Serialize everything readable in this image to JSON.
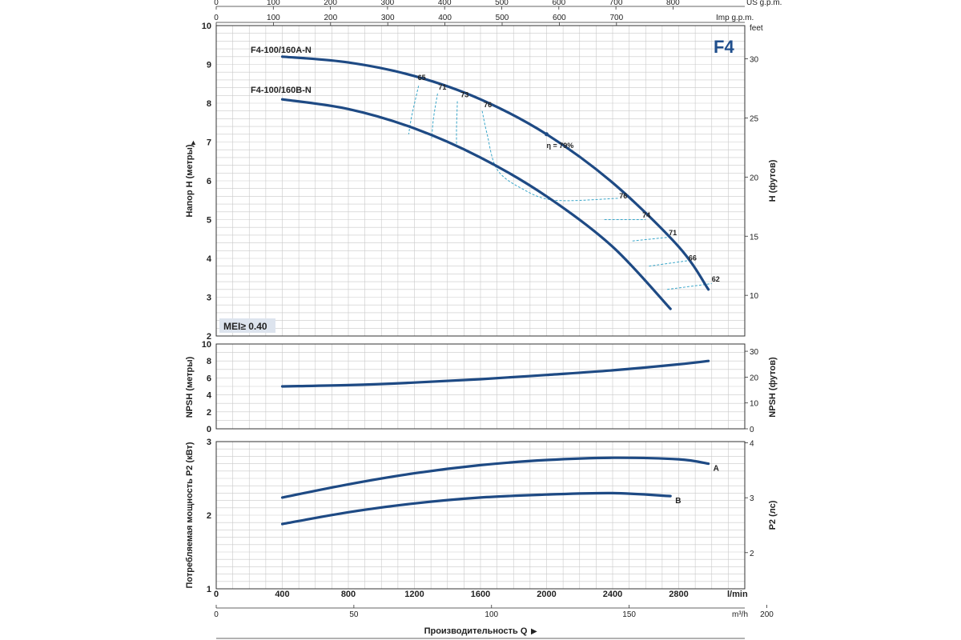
{
  "chart_data": {
    "type": "line",
    "badge": "F4",
    "mei_label": "MEI≥ 0.40",
    "top_axes": {
      "us_label": "US g.p.m.",
      "us_ticks": [
        "0",
        "100",
        "200",
        "300",
        "400",
        "500",
        "600",
        "700",
        "800"
      ],
      "imp_label": "Imp g.p.m.",
      "imp_ticks": [
        "0",
        "100",
        "200",
        "300",
        "400",
        "500",
        "600",
        "700"
      ]
    },
    "bottom_axes": {
      "lmin_unit": "l/min",
      "lmin_ticks": [
        "0",
        "400",
        "800",
        "1200",
        "1600",
        "2000",
        "2400",
        "2800"
      ],
      "m3h_unit": "m³/h",
      "m3h_ticks": [
        "0",
        "50",
        "100",
        "150",
        "200"
      ],
      "xlabel": "Производительность Q"
    },
    "head_chart": {
      "ylabel": "Напор H (метры)",
      "ylabel_right": "H (футов)",
      "feet_unit": "feet",
      "ylim": [
        2,
        10
      ],
      "yticks": [
        "2",
        "3",
        "4",
        "5",
        "6",
        "7",
        "8",
        "9",
        "10"
      ],
      "feet_ticks": [
        "10",
        "15",
        "20",
        "25",
        "30"
      ],
      "series": [
        {
          "name": "F4-100/160A-N",
          "x": [
            400,
            800,
            1200,
            1600,
            2000,
            2400,
            2800,
            2980
          ],
          "y": [
            9.2,
            9.05,
            8.7,
            8.1,
            7.2,
            5.95,
            4.3,
            3.2
          ]
        },
        {
          "name": "F4-100/160B-N",
          "x": [
            400,
            800,
            1200,
            1600,
            2000,
            2400,
            2750
          ],
          "y": [
            8.1,
            7.85,
            7.35,
            6.6,
            5.6,
            4.3,
            2.7
          ]
        }
      ],
      "efficiency_labels": [
        {
          "text": "65",
          "x": 1220,
          "y": 8.6
        },
        {
          "text": "71",
          "x": 1345,
          "y": 8.35
        },
        {
          "text": "73",
          "x": 1480,
          "y": 8.15
        },
        {
          "text": "76",
          "x": 1620,
          "y": 7.9
        },
        {
          "text": "η = 79%",
          "x": 2000,
          "y": 6.85
        },
        {
          "text": "76",
          "x": 2440,
          "y": 5.55
        },
        {
          "text": "74",
          "x": 2580,
          "y": 5.05
        },
        {
          "text": "71",
          "x": 2740,
          "y": 4.6
        },
        {
          "text": "66",
          "x": 2860,
          "y": 3.95
        },
        {
          "text": "62",
          "x": 3000,
          "y": 3.4
        }
      ]
    },
    "npsh_chart": {
      "ylabel": "NPSH (метры)",
      "ylabel_right": "NPSH (футов)",
      "ylim": [
        0,
        10
      ],
      "yticks": [
        "0",
        "2",
        "4",
        "6",
        "8",
        "10"
      ],
      "feet_ticks": [
        "0",
        "10",
        "20",
        "30"
      ],
      "series": [
        {
          "name": "",
          "x": [
            400,
            800,
            1200,
            1600,
            2000,
            2400,
            2800,
            2980
          ],
          "y": [
            5.0,
            5.15,
            5.45,
            5.85,
            6.35,
            6.9,
            7.6,
            8.0
          ]
        }
      ]
    },
    "power_chart": {
      "ylabel": "Потребляемая мощность P2 (кВт)",
      "ylabel_right": "P2 (лс)",
      "ylim": [
        1,
        3
      ],
      "yticks": [
        "1",
        "2",
        "3"
      ],
      "hp_ticks": [
        "2",
        "3",
        "4"
      ],
      "series": [
        {
          "name": "A",
          "x": [
            400,
            800,
            1200,
            1600,
            2000,
            2400,
            2800,
            2980
          ],
          "y": [
            2.24,
            2.42,
            2.57,
            2.68,
            2.75,
            2.78,
            2.76,
            2.7
          ]
        },
        {
          "name": "B",
          "x": [
            400,
            800,
            1200,
            1600,
            2000,
            2400,
            2750
          ],
          "y": [
            1.88,
            2.04,
            2.16,
            2.24,
            2.28,
            2.3,
            2.26
          ]
        }
      ]
    }
  }
}
